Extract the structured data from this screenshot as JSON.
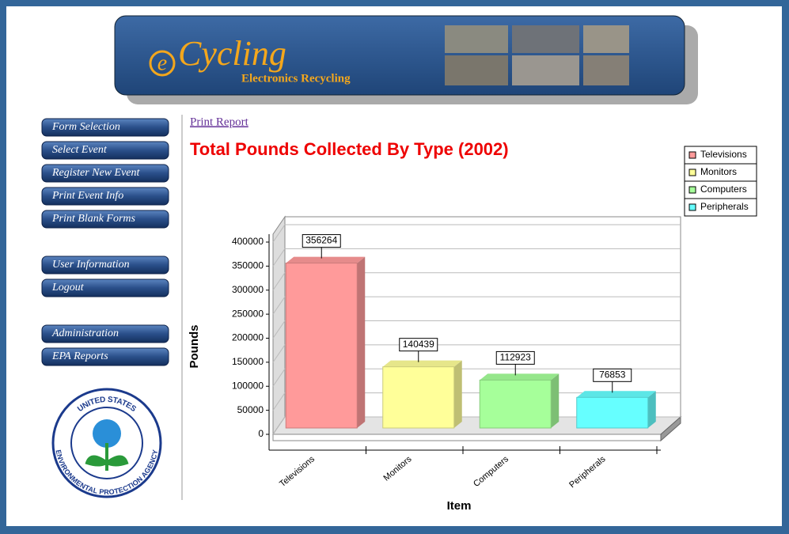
{
  "header": {
    "logo_e": "e",
    "logo_text": "Cycling",
    "subtitle": "Electronics Recycling"
  },
  "nav": [
    [
      "Form Selection",
      "Select Event",
      "Register New Event",
      "Print Event Info",
      "Print Blank Forms"
    ],
    [
      "User Information",
      "Logout"
    ],
    [
      "Administration",
      "EPA Reports"
    ]
  ],
  "seal": {
    "top": "UNITED STATES",
    "bottom": "ENVIRONMENTAL PROTECTION AGENCY"
  },
  "link": "Print Report",
  "chart_data": {
    "type": "bar",
    "title": "Total Pounds Collected By Type (2002)",
    "categories": [
      "Televisions",
      "Monitors",
      "Computers",
      "Peripherals"
    ],
    "values": [
      356264,
      140439,
      112923,
      76853
    ],
    "colors": [
      "#ff9a9a",
      "#ffff99",
      "#a6ff9a",
      "#66ffff"
    ],
    "x_label": "Item",
    "y_label": "Pounds",
    "ylim": [
      0,
      400000
    ],
    "yticks": [
      0,
      50000,
      100000,
      150000,
      200000,
      250000,
      300000,
      350000,
      400000
    ],
    "grid": true,
    "legend": "top-right"
  }
}
